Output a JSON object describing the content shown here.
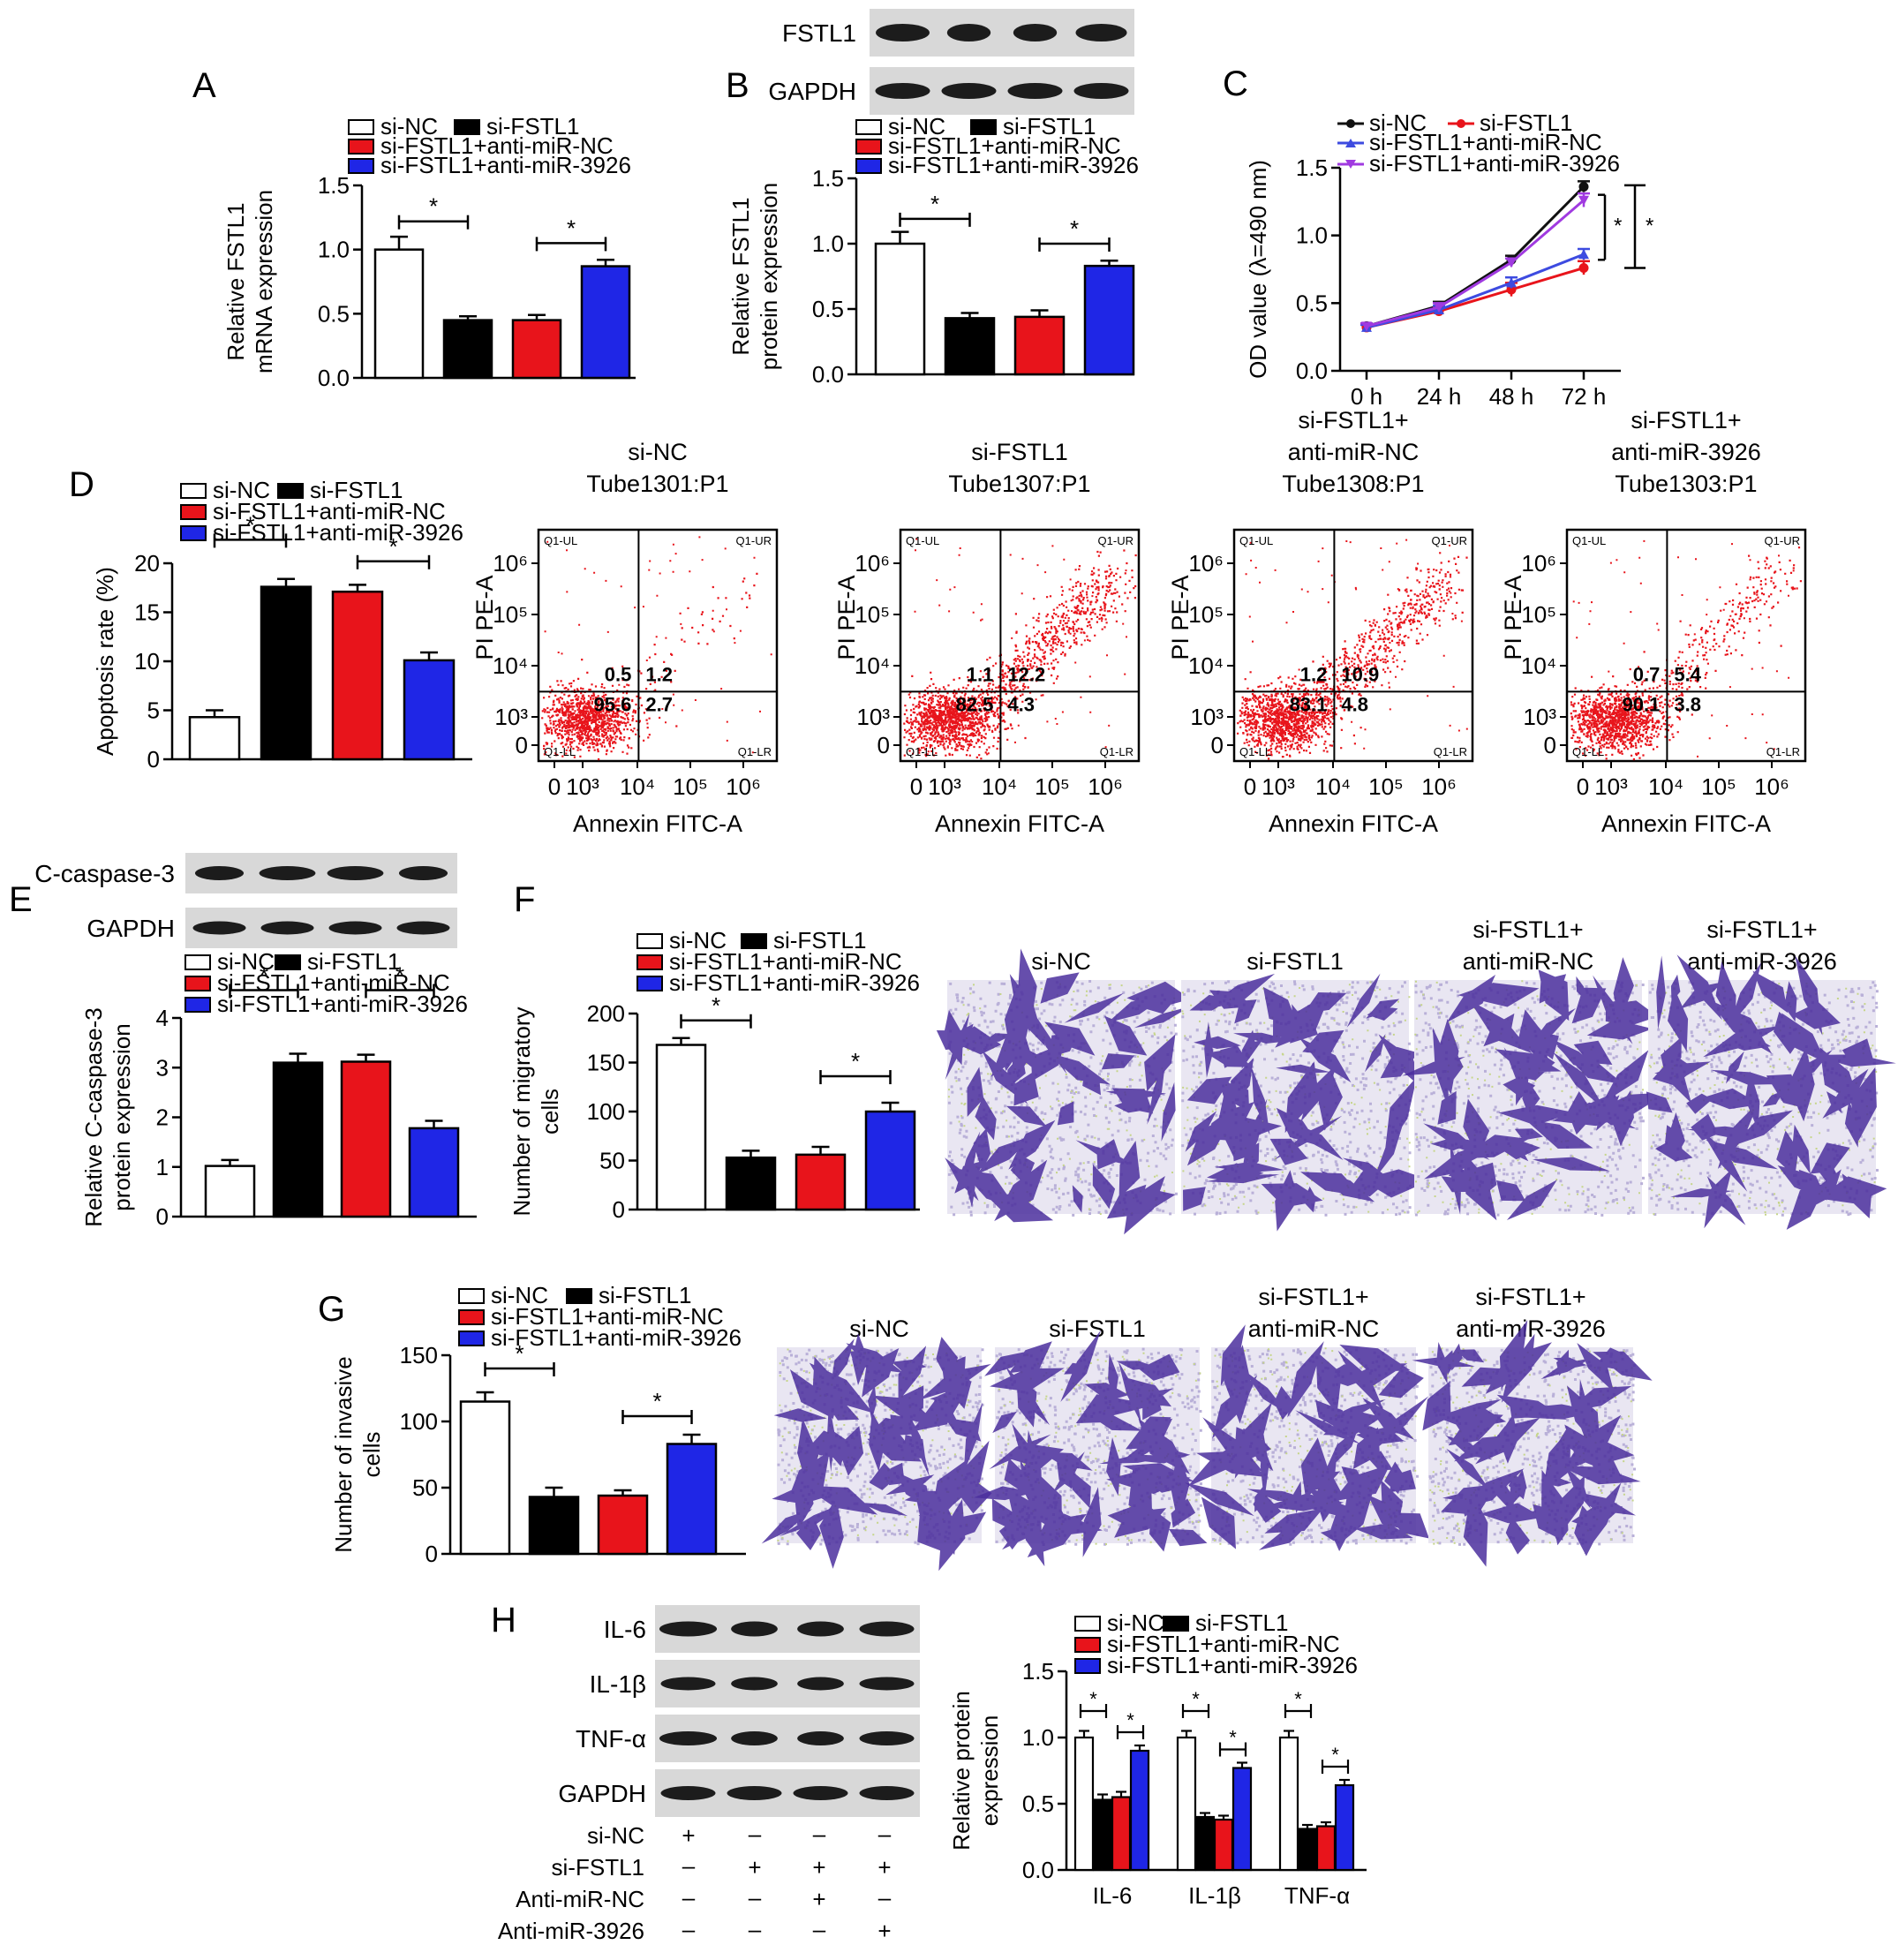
{
  "panel_letters": [
    "A",
    "B",
    "C",
    "D",
    "E",
    "F",
    "G",
    "H"
  ],
  "colors": {
    "si_nc": "#ffffff",
    "si_fstl1": "#000000",
    "anti_nc": "#e8141b",
    "anti_3926": "#1f26e6",
    "line_black": "#111111",
    "line_red": "#e8141b",
    "line_blue": "#3d4be0",
    "line_purple": "#a03ae0",
    "flow_dots": "#e8141b",
    "stain": "#4b2f9e"
  },
  "legend": {
    "si_nc": "si-NC",
    "si_fstl1": "si-FSTL1",
    "anti_nc": "si-FSTL1+anti-miR-NC",
    "anti_3926": "si-FSTL1+anti-miR-3926"
  },
  "sig": "*",
  "blots": {
    "fstl1": "FSTL1",
    "gapdh": "GAPDH",
    "ccasp3": "C-caspase-3",
    "il6": "IL-6",
    "il1b": "IL-1β",
    "tnfa": "TNF-α"
  },
  "chart_data": [
    {
      "panel": "A",
      "type": "bar",
      "ylabel": [
        "Relative FSTL1",
        "mRNA expression"
      ],
      "ylim": [
        0,
        1.5
      ],
      "yticks": [
        "0.0",
        "0.5",
        "1.0",
        "1.5"
      ],
      "values": [
        1.0,
        0.45,
        0.45,
        0.87
      ],
      "errors": [
        0.1,
        0.03,
        0.04,
        0.05
      ]
    },
    {
      "panel": "B",
      "type": "bar",
      "ylabel": [
        "Relative FSTL1",
        "protein expression"
      ],
      "ylim": [
        0,
        1.5
      ],
      "yticks": [
        "0.0",
        "0.5",
        "1.0",
        "1.5"
      ],
      "values": [
        1.0,
        0.43,
        0.44,
        0.83
      ],
      "errors": [
        0.09,
        0.04,
        0.05,
        0.04
      ]
    },
    {
      "panel": "C",
      "type": "line",
      "ylabel": "OD value (λ=490 nm)",
      "ylim": [
        0,
        1.5
      ],
      "yticks": [
        "0.0",
        "0.5",
        "1.0",
        "1.5"
      ],
      "x": [
        "0 h",
        "24 h",
        "48 h",
        "72 h"
      ],
      "series": [
        {
          "name": "si-NC",
          "values": [
            0.33,
            0.48,
            0.82,
            1.36
          ],
          "errors": [
            0.02,
            0.03,
            0.03,
            0.04
          ]
        },
        {
          "name": "si-FSTL1",
          "values": [
            0.32,
            0.44,
            0.6,
            0.76
          ],
          "errors": [
            0.02,
            0.03,
            0.05,
            0.05
          ]
        },
        {
          "name": "si-FSTL1+anti-miR-NC",
          "values": [
            0.32,
            0.45,
            0.65,
            0.86
          ],
          "errors": [
            0.02,
            0.03,
            0.04,
            0.04
          ]
        },
        {
          "name": "si-FSTL1+anti-miR-3926",
          "values": [
            0.33,
            0.47,
            0.8,
            1.26
          ],
          "errors": [
            0.02,
            0.03,
            0.03,
            0.05
          ]
        }
      ]
    },
    {
      "panel": "D",
      "type": "bar",
      "ylabel": "Apoptosis rate (%)",
      "ylim": [
        0,
        20
      ],
      "yticks": [
        "0",
        "5",
        "10",
        "15",
        "20"
      ],
      "values": [
        4.3,
        17.6,
        17.1,
        10.1
      ],
      "errors": [
        0.7,
        0.8,
        0.7,
        0.8
      ]
    },
    {
      "panel": "E",
      "type": "bar",
      "ylabel": [
        "Relative C-caspase-3",
        "protein expression"
      ],
      "ylim": [
        0,
        4
      ],
      "yticks": [
        "0",
        "1",
        "2",
        "3",
        "4"
      ],
      "values": [
        1.02,
        3.1,
        3.12,
        1.78
      ],
      "errors": [
        0.12,
        0.18,
        0.14,
        0.15
      ]
    },
    {
      "panel": "F",
      "type": "bar",
      "ylabel": [
        "Number of migratory",
        "cells"
      ],
      "ylim": [
        0,
        200
      ],
      "yticks": [
        "0",
        "50",
        "100",
        "150",
        "200"
      ],
      "values": [
        168,
        53,
        56,
        100
      ],
      "errors": [
        7,
        7,
        8,
        9
      ]
    },
    {
      "panel": "G",
      "type": "bar",
      "ylabel": [
        "Number of invasive",
        "cells"
      ],
      "ylim": [
        0,
        150
      ],
      "yticks": [
        "0",
        "50",
        "100",
        "150"
      ],
      "values": [
        115,
        43,
        44,
        83
      ],
      "errors": [
        7,
        7,
        4,
        7
      ]
    },
    {
      "panel": "H",
      "type": "bar",
      "ylabel": [
        "Relative protein",
        "expression"
      ],
      "ylim": [
        0,
        1.5
      ],
      "yticks": [
        "0.0",
        "0.5",
        "1.0",
        "1.5"
      ],
      "categories": [
        "IL-6",
        "IL-1β",
        "TNF-α"
      ],
      "series": [
        {
          "name": "si-NC",
          "values": [
            1.0,
            1.0,
            1.0
          ],
          "errors": [
            0.05,
            0.05,
            0.05
          ]
        },
        {
          "name": "si-FSTL1",
          "values": [
            0.53,
            0.4,
            0.31
          ],
          "errors": [
            0.04,
            0.03,
            0.03
          ]
        },
        {
          "name": "si-FSTL1+anti-miR-NC",
          "values": [
            0.55,
            0.38,
            0.33
          ],
          "errors": [
            0.04,
            0.03,
            0.03
          ]
        },
        {
          "name": "si-FSTL1+anti-miR-3926",
          "values": [
            0.9,
            0.77,
            0.64
          ],
          "errors": [
            0.04,
            0.04,
            0.04
          ]
        }
      ]
    }
  ],
  "flow": {
    "xlabel": "Annexin FITC-A",
    "ylabel": "PI PE-A",
    "quadrants": [
      "Q1-UL",
      "Q1-UR",
      "Q1-LL",
      "Q1-LR"
    ],
    "xticks": [
      "0",
      "10³",
      "10⁴",
      "10⁵",
      "10⁶"
    ],
    "yticks": [
      "0",
      "10³",
      "10⁴",
      "10⁵",
      "10⁶"
    ],
    "plots": [
      {
        "title": [
          "si-NC",
          "Tube1301:P1"
        ],
        "ul": "0.5",
        "ur": "1.2",
        "ll": "95.6",
        "lr": "2.7"
      },
      {
        "title": [
          "si-FSTL1",
          "Tube1307:P1"
        ],
        "ul": "1.1",
        "ur": "12.2",
        "ll": "82.5",
        "lr": "4.3"
      },
      {
        "title": [
          "si-FSTL1+",
          "anti-miR-NC",
          "Tube1308:P1"
        ],
        "ul": "1.2",
        "ur": "10.9",
        "ll": "83.1",
        "lr": "4.8"
      },
      {
        "title": [
          "si-FSTL1+",
          "anti-miR-3926",
          "Tube1303:P1"
        ],
        "ul": "0.7",
        "ur": "5.4",
        "ll": "90.1",
        "lr": "3.8"
      }
    ]
  },
  "micro_titles": [
    [
      "si-NC"
    ],
    [
      "si-FSTL1"
    ],
    [
      "si-FSTL1+",
      "anti-miR-NC"
    ],
    [
      "si-FSTL1+",
      "anti-miR-3926"
    ]
  ],
  "h_table": {
    "rows": [
      {
        "label": "si-NC",
        "marks": [
          "+",
          "–",
          "–",
          "–"
        ]
      },
      {
        "label": "si-FSTL1",
        "marks": [
          "–",
          "+",
          "+",
          "+"
        ]
      },
      {
        "label": "Anti-miR-NC",
        "marks": [
          "–",
          "–",
          "+",
          "–"
        ]
      },
      {
        "label": "Anti-miR-3926",
        "marks": [
          "–",
          "–",
          "–",
          "+"
        ]
      }
    ]
  }
}
